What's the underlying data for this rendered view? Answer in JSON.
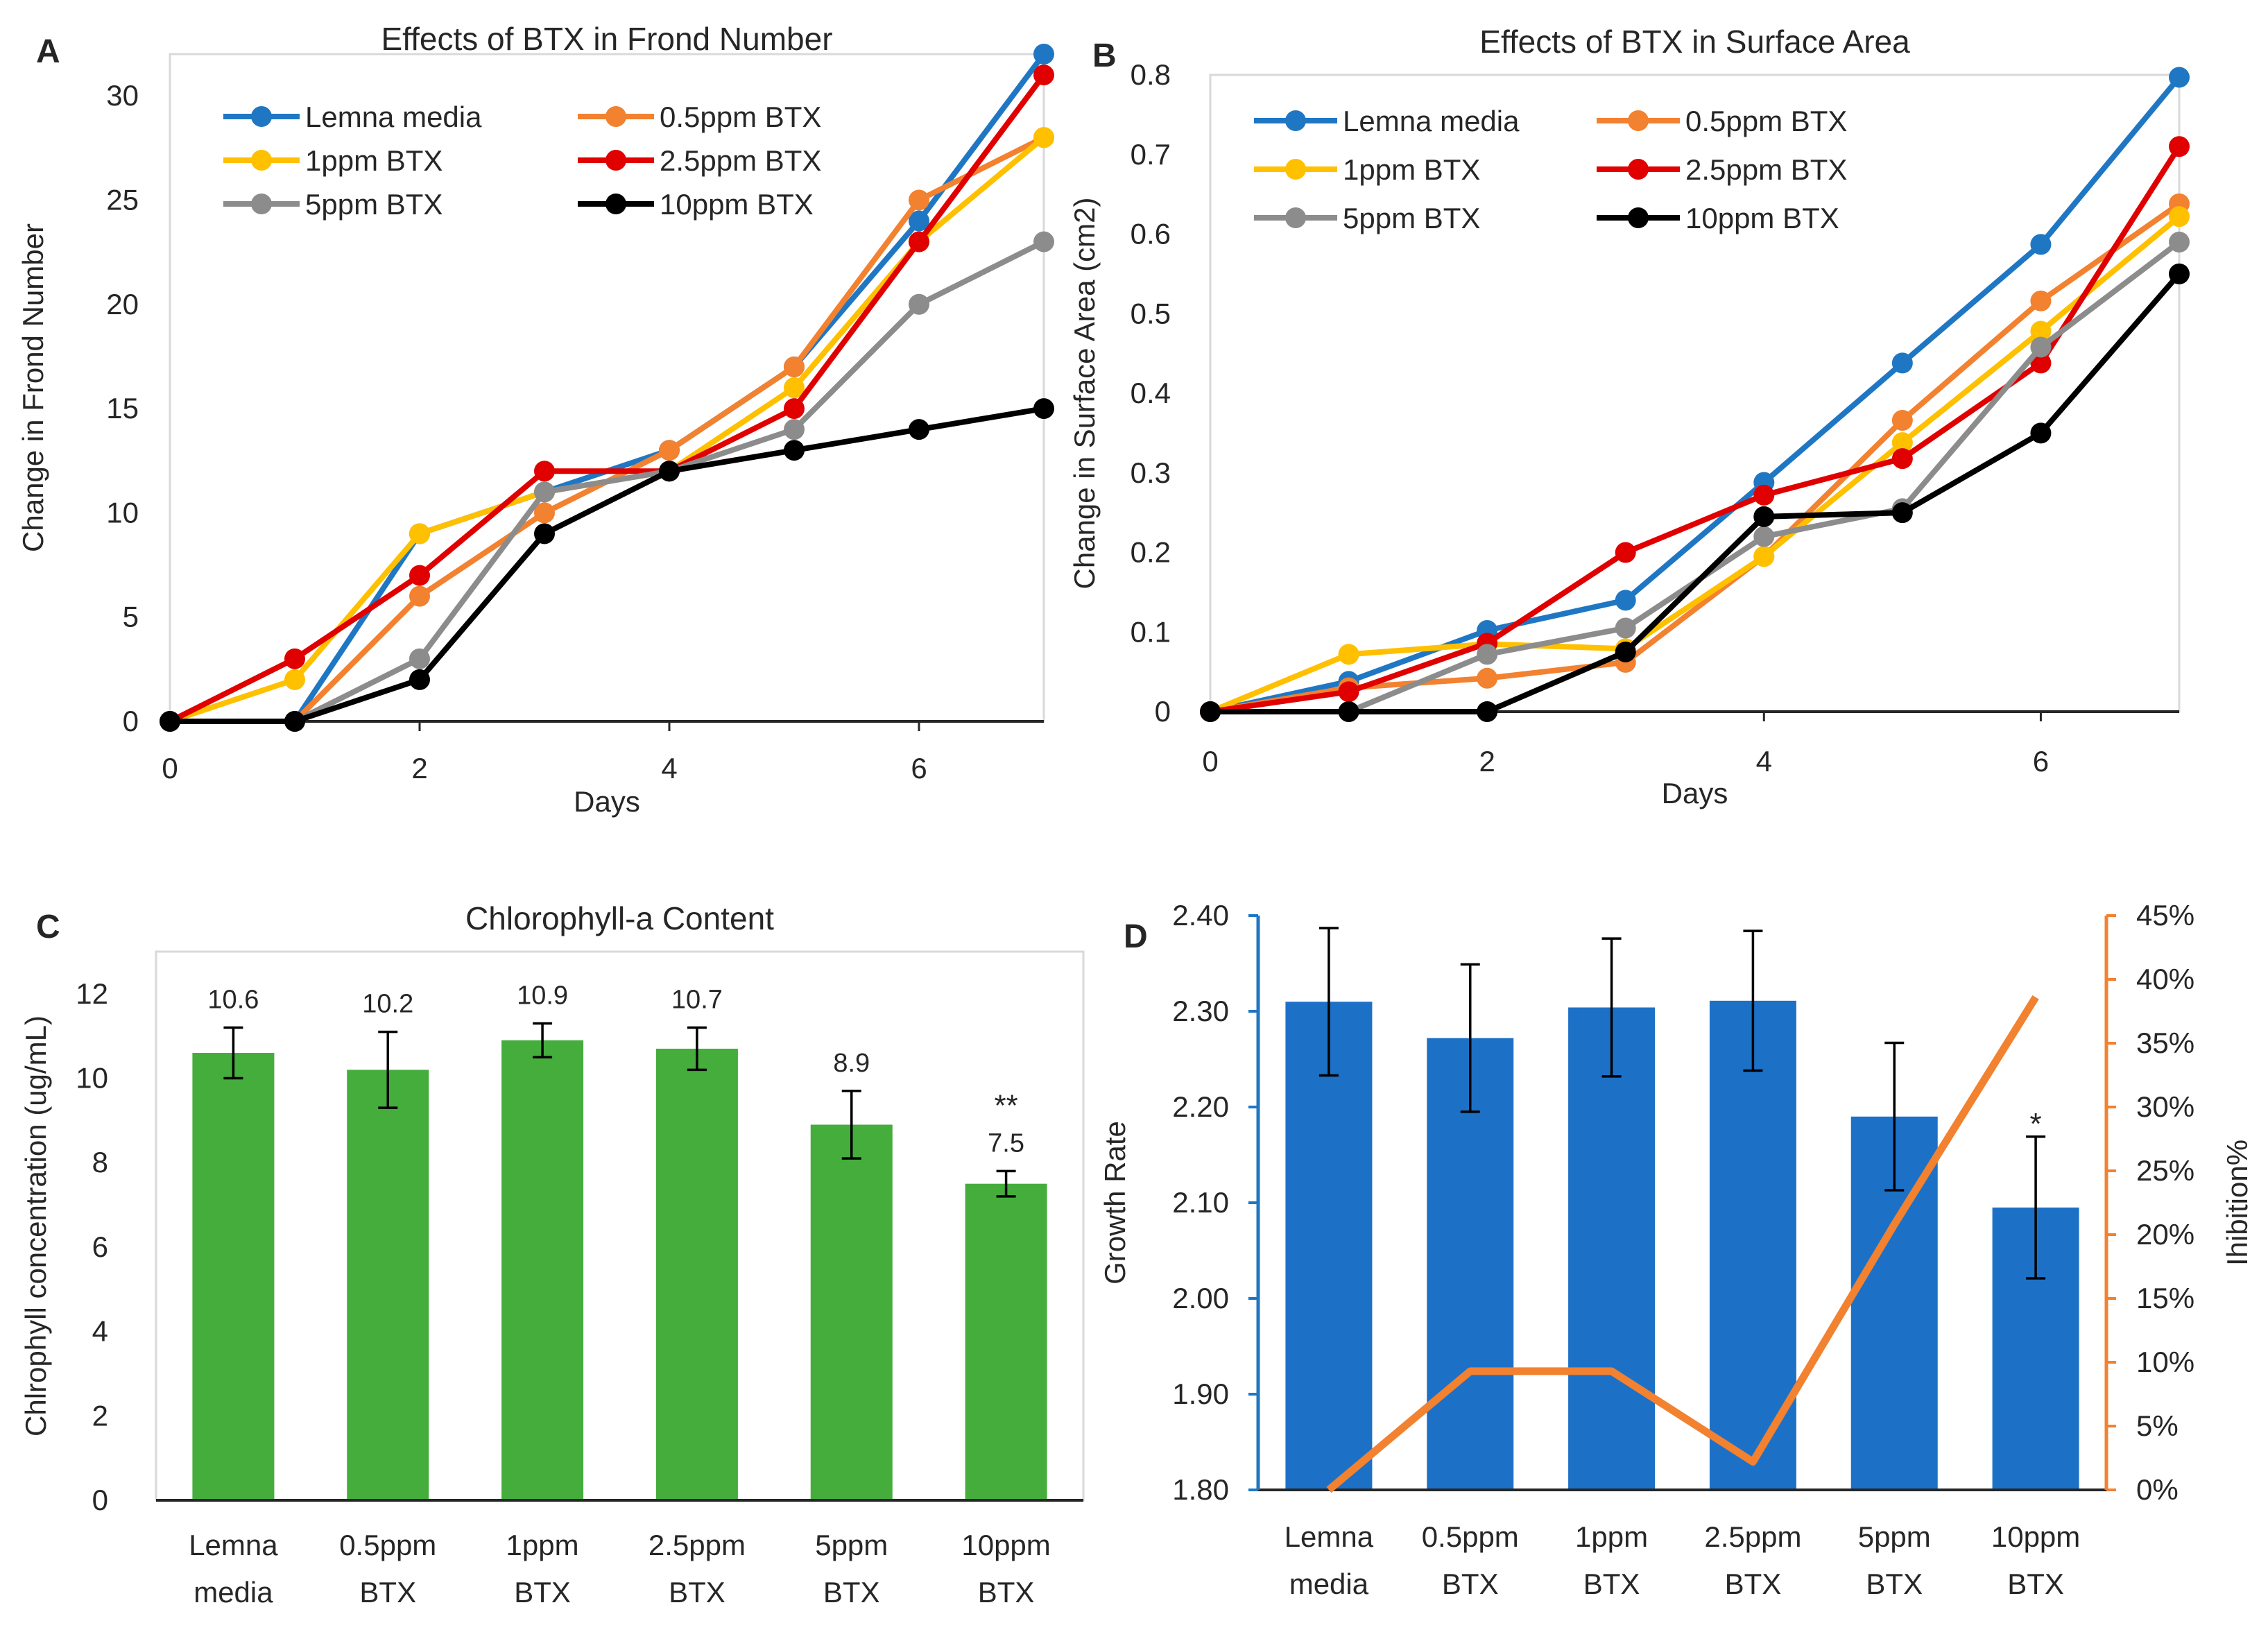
{
  "chart_data": [
    {
      "id": "A",
      "panel_label": "A",
      "type": "line",
      "title": "Effects of BTX in Frond Number",
      "xlabel": "Days",
      "ylabel": "Change in Frond Number",
      "x": [
        0,
        1,
        2,
        3,
        4,
        5,
        6,
        7
      ],
      "xticks": [
        0,
        2,
        4,
        6
      ],
      "xlim": [
        0,
        7
      ],
      "ylim": [
        0,
        32
      ],
      "yticks": [
        0,
        5,
        10,
        15,
        20,
        25,
        30
      ],
      "legend": "top-left",
      "series": [
        {
          "name": "Lemna media",
          "color": "#1f77c4",
          "values": [
            0,
            0,
            9,
            11,
            13,
            17,
            24,
            32
          ]
        },
        {
          "name": "0.5ppm BTX",
          "color": "#f28130",
          "values": [
            0,
            0,
            6,
            10,
            13,
            17,
            25,
            28
          ]
        },
        {
          "name": "1ppm BTX",
          "color": "#ffc000",
          "values": [
            0,
            2,
            9,
            11,
            12,
            16,
            23,
            28
          ]
        },
        {
          "name": "2.5ppm BTX",
          "color": "#e00000",
          "values": [
            0,
            3,
            7,
            12,
            12,
            15,
            23,
            31
          ]
        },
        {
          "name": "5ppm BTX",
          "color": "#8c8c8c",
          "values": [
            0,
            0,
            3,
            11,
            12,
            14,
            20,
            23
          ]
        },
        {
          "name": "10ppm BTX",
          "color": "#000000",
          "values": [
            0,
            0,
            2,
            9,
            12,
            13,
            14,
            15
          ]
        }
      ]
    },
    {
      "id": "B",
      "panel_label": "B",
      "type": "line",
      "title": "Effects of BTX in Surface Area",
      "xlabel": "Days",
      "ylabel": "Change in Surface Area (cm2)",
      "x": [
        0,
        1,
        2,
        3,
        4,
        5,
        6,
        7
      ],
      "xticks": [
        0,
        2,
        4,
        6
      ],
      "xlim": [
        0,
        7
      ],
      "ylim": [
        0,
        0.8
      ],
      "yticks": [
        0,
        0.1,
        0.2,
        0.3,
        0.4,
        0.5,
        0.6,
        0.7,
        0.8
      ],
      "ytick_labels": [
        "0",
        "0.1",
        "0.2",
        "0.3",
        "0.4",
        "0.5",
        "0.6",
        "0.7",
        "0.8"
      ],
      "legend": "top-left",
      "series": [
        {
          "name": "Lemna media",
          "color": "#1f77c4",
          "values": [
            0,
            0.038,
            0.102,
            0.14,
            0.288,
            0.438,
            0.587,
            0.797
          ]
        },
        {
          "name": "0.5ppm BTX",
          "color": "#f28130",
          "values": [
            0,
            0.03,
            0.042,
            0.062,
            0.195,
            0.366,
            0.516,
            0.638
          ]
        },
        {
          "name": "1ppm BTX",
          "color": "#ffc000",
          "values": [
            0,
            0.072,
            0.085,
            0.079,
            0.195,
            0.338,
            0.478,
            0.622
          ]
        },
        {
          "name": "2.5ppm BTX",
          "color": "#e00000",
          "values": [
            0,
            0.025,
            0.086,
            0.2,
            0.272,
            0.318,
            0.438,
            0.71
          ]
        },
        {
          "name": "5ppm BTX",
          "color": "#8c8c8c",
          "values": [
            0,
            0,
            0.072,
            0.105,
            0.22,
            0.255,
            0.458,
            0.59
          ]
        },
        {
          "name": "10ppm BTX",
          "color": "#000000",
          "values": [
            0,
            0,
            0,
            0.075,
            0.245,
            0.25,
            0.35,
            0.55
          ]
        }
      ]
    },
    {
      "id": "C",
      "panel_label": "C",
      "type": "bar",
      "title": "Chlorophyll-a Content",
      "xlabel": "",
      "ylabel": "Chlrophyll concentration (ug/mL)",
      "categories": [
        [
          "Lemna",
          "media"
        ],
        [
          "0.5ppm",
          "BTX"
        ],
        [
          "1ppm",
          "BTX"
        ],
        [
          "2.5ppm",
          "BTX"
        ],
        [
          "5ppm",
          "BTX"
        ],
        [
          "10ppm",
          "BTX"
        ]
      ],
      "values": [
        10.6,
        10.2,
        10.9,
        10.7,
        8.9,
        7.5
      ],
      "data_labels": [
        "10.6",
        "10.2",
        "10.9",
        "10.7",
        "8.9",
        "7.5"
      ],
      "errors": [
        0.6,
        0.9,
        0.4,
        0.5,
        0.8,
        0.3
      ],
      "significance": [
        "",
        "",
        "",
        "",
        "",
        "**"
      ],
      "ylim": [
        0,
        13
      ],
      "yticks": [
        0,
        2,
        4,
        6,
        8,
        10,
        12
      ],
      "bar_color": "#44ad3c"
    },
    {
      "id": "D",
      "panel_label": "D",
      "type": "bar",
      "title": "",
      "xlabel": "",
      "ylabel": "Growth Rate",
      "y2label": "Ihibition%",
      "categories": [
        [
          "Lemna",
          "media"
        ],
        [
          "0.5ppm",
          "BTX"
        ],
        [
          "1ppm",
          "BTX"
        ],
        [
          "2.5ppm",
          "BTX"
        ],
        [
          "5ppm",
          "BTX"
        ],
        [
          "10ppm",
          "BTX"
        ]
      ],
      "values": [
        2.31,
        2.272,
        2.304,
        2.311,
        2.19,
        2.095
      ],
      "errors": [
        0.077,
        0.077,
        0.072,
        0.073,
        0.077,
        0.074
      ],
      "significance": [
        "",
        "",
        "",
        "",
        "",
        "*"
      ],
      "ylim": [
        1.8,
        2.4
      ],
      "yticks": [
        1.8,
        1.9,
        2.0,
        2.1,
        2.2,
        2.3,
        2.4
      ],
      "ytick_labels": [
        "1.80",
        "1.90",
        "2.00",
        "2.10",
        "2.20",
        "2.30",
        "2.40"
      ],
      "bar_color": "#1c71c7",
      "axis_left_color": "#1f77c4",
      "y2lim": [
        0,
        45
      ],
      "y2ticks": [
        0,
        5,
        10,
        15,
        20,
        25,
        30,
        35,
        40,
        45
      ],
      "y2tick_labels": [
        "0%",
        "5%",
        "10%",
        "15%",
        "20%",
        "25%",
        "30%",
        "35%",
        "40%",
        "45%"
      ],
      "axis_right_color": "#f28130",
      "line_series": {
        "name": "Ihibition%",
        "color": "#f28130",
        "values": [
          0,
          9.3,
          9.3,
          2.2,
          20.8,
          38.6
        ]
      }
    }
  ]
}
